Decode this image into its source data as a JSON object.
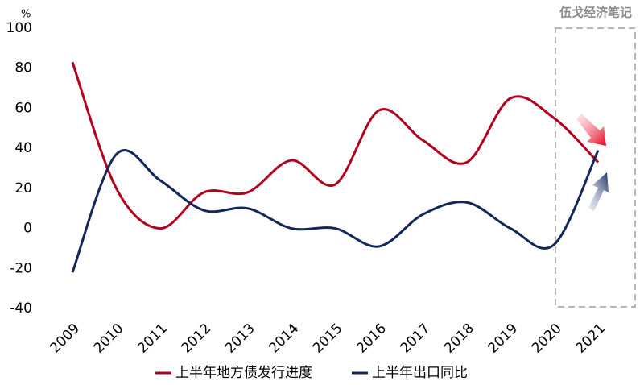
{
  "chart_data": {
    "type": "line",
    "unit_label": "%",
    "watermark": "伍戈经济笔记",
    "categories": [
      "2009",
      "2010",
      "2011",
      "2012",
      "2013",
      "2014",
      "2015",
      "2016",
      "2017",
      "2018",
      "2019",
      "2020",
      "2021"
    ],
    "series": [
      {
        "name": "上半年地方债发行进度",
        "color": "#b0001e",
        "values": [
          83,
          20,
          0,
          18,
          18,
          34,
          22,
          59,
          44,
          33,
          65,
          55,
          33
        ]
      },
      {
        "name": "上半年出口同比",
        "color": "#14275c",
        "values": [
          -22,
          37,
          24,
          9,
          10,
          0,
          0,
          -9,
          7,
          13,
          0,
          -8,
          39
        ]
      }
    ],
    "ylim": [
      -40,
      100
    ],
    "yticks": [
      -40,
      -20,
      0,
      20,
      40,
      60,
      80,
      100
    ],
    "grid": false
  }
}
